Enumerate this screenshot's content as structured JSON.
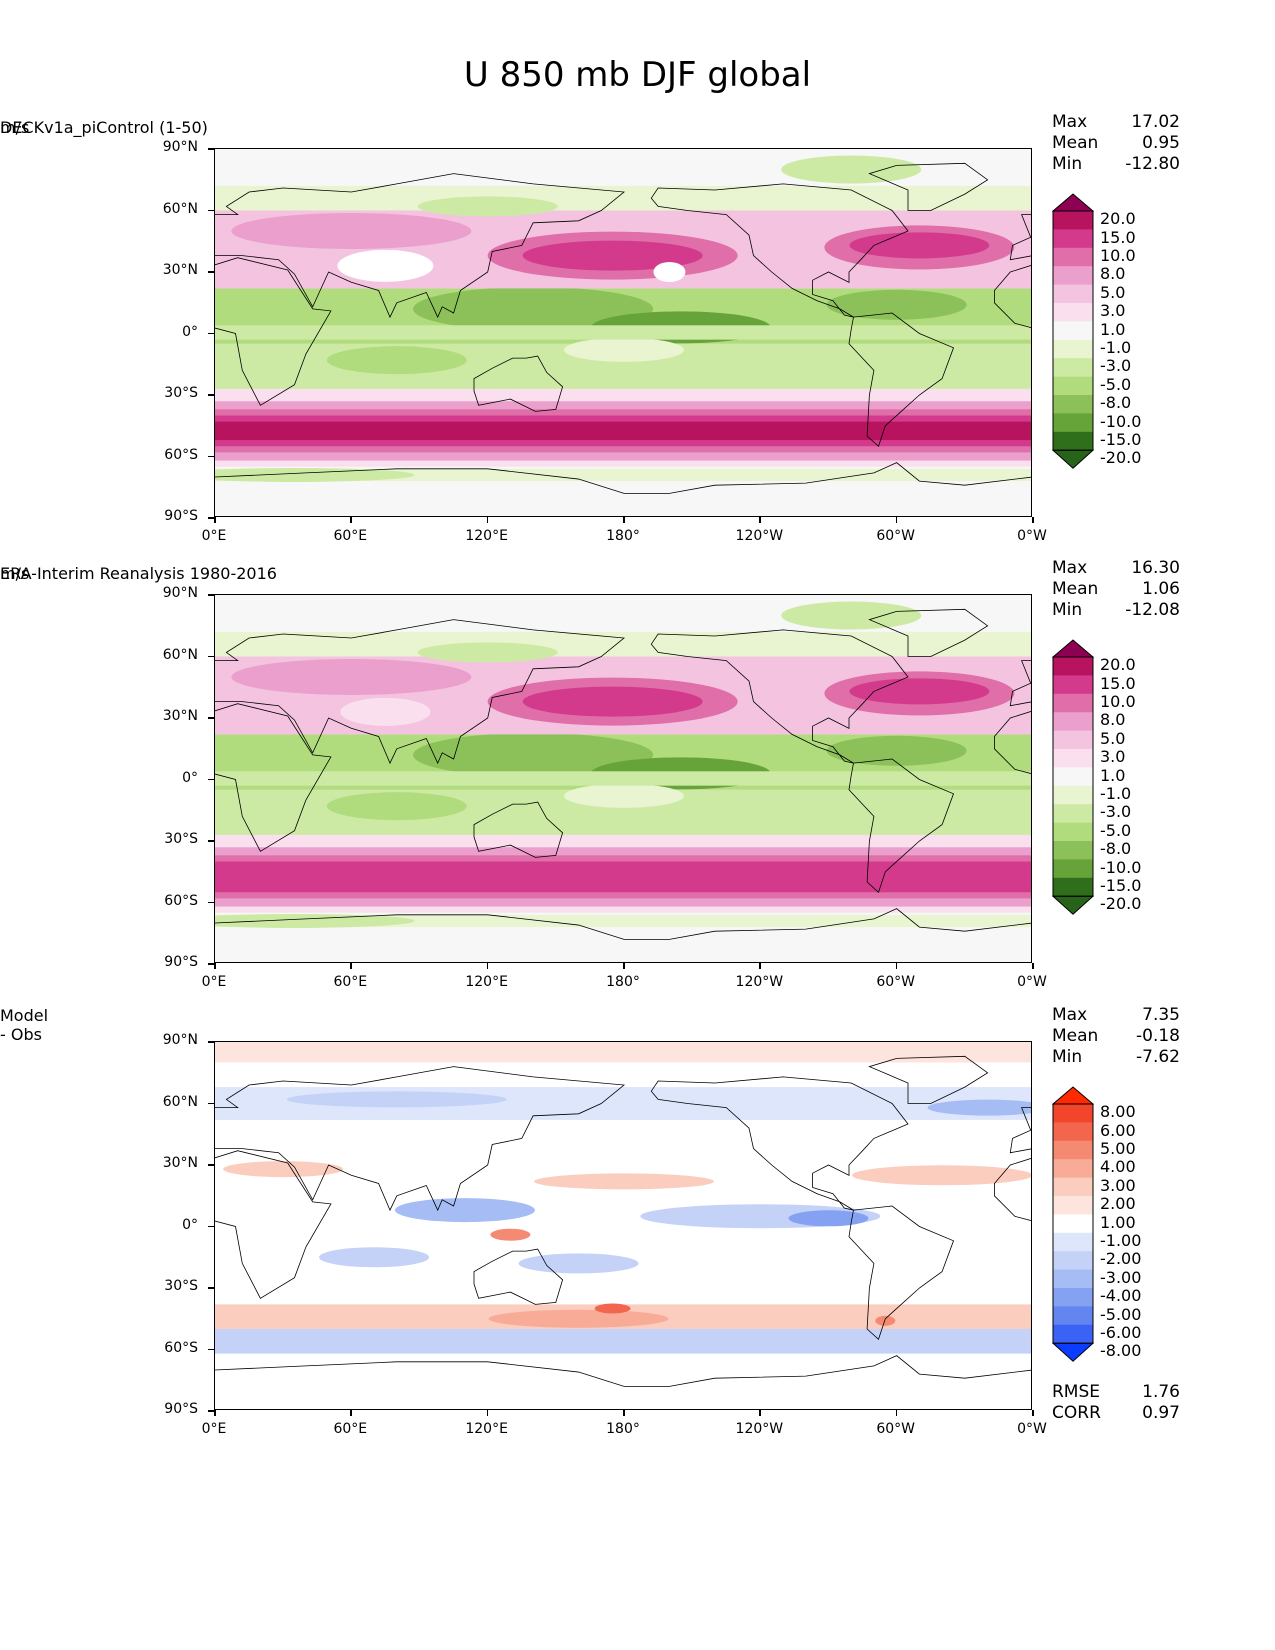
{
  "figure": {
    "title": "U 850 mb DJF global"
  },
  "axes": {
    "y_ticks": [
      "90°N",
      "60°N",
      "30°N",
      "0°",
      "30°S",
      "60°S",
      "90°S"
    ],
    "x_ticks": [
      "0°E",
      "60°E",
      "120°E",
      "180°",
      "120°W",
      "60°W",
      "0°W"
    ],
    "lon_range": [
      0,
      360
    ],
    "lat_range": [
      -90,
      90
    ]
  },
  "panels": [
    {
      "title": "DECKv1a_piControl (1-50)",
      "units": "m/s",
      "stats": [
        {
          "label": "Max",
          "value": "17.02"
        },
        {
          "label": "Mean",
          "value": "0.95"
        },
        {
          "label": "Min",
          "value": "-12.80"
        }
      ],
      "colorbar": {
        "levels": [
          "20.0",
          "15.0",
          "10.0",
          "8.0",
          "5.0",
          "3.0",
          "1.0",
          "-1.0",
          "-3.0",
          "-5.0",
          "-8.0",
          "-10.0",
          "-15.0",
          "-20.0"
        ],
        "colors": [
          "#8e0152",
          "#b7135f",
          "#d33a8c",
          "#df6ea9",
          "#eb9fcc",
          "#f4c3e0",
          "#fae0ef",
          "#f7f7f7",
          "#e8f5d0",
          "#cdeaa4",
          "#b1dc7d",
          "#8cc15a",
          "#66a43a",
          "#2f6f1b",
          "#276419"
        ],
        "scheme": "PiYG"
      }
    },
    {
      "title": "ERA-Interim Reanalysis 1980-2016",
      "units": "m/s",
      "stats": [
        {
          "label": "Max",
          "value": "16.30"
        },
        {
          "label": "Mean",
          "value": "1.06"
        },
        {
          "label": "Min",
          "value": "-12.08"
        }
      ],
      "colorbar": {
        "levels": [
          "20.0",
          "15.0",
          "10.0",
          "8.0",
          "5.0",
          "3.0",
          "1.0",
          "-1.0",
          "-3.0",
          "-5.0",
          "-8.0",
          "-10.0",
          "-15.0",
          "-20.0"
        ],
        "colors": [
          "#8e0152",
          "#b7135f",
          "#d33a8c",
          "#df6ea9",
          "#eb9fcc",
          "#f4c3e0",
          "#fae0ef",
          "#f7f7f7",
          "#e8f5d0",
          "#cdeaa4",
          "#b1dc7d",
          "#8cc15a",
          "#66a43a",
          "#2f6f1b",
          "#276419"
        ],
        "scheme": "PiYG"
      }
    },
    {
      "title": "Model - Obs",
      "units": "",
      "stats": [
        {
          "label": "Max",
          "value": "7.35"
        },
        {
          "label": "Mean",
          "value": "-0.18"
        },
        {
          "label": "Min",
          "value": "-7.62"
        }
      ],
      "extra_stats": [
        {
          "label": "RMSE",
          "value": "1.76"
        },
        {
          "label": "CORR",
          "value": "0.97"
        }
      ],
      "colorbar": {
        "levels": [
          "8.00",
          "6.00",
          "5.00",
          "4.00",
          "3.00",
          "2.00",
          "1.00",
          "-1.00",
          "-2.00",
          "-3.00",
          "-4.00",
          "-5.00",
          "-6.00",
          "-8.00"
        ],
        "colors": [
          "#ff2a00",
          "#f2452c",
          "#f3664e",
          "#f58a72",
          "#f8ac97",
          "#fbcdbf",
          "#fde5dd",
          "#ffffff",
          "#dde6fb",
          "#c4d2f8",
          "#a6bcf5",
          "#85a2f2",
          "#6385f0",
          "#3a63f5",
          "#0b3cff"
        ],
        "scheme": "diverging-red-blue"
      }
    }
  ],
  "chart_data": {
    "type": "heatmap",
    "title": "U 850 mb DJF global",
    "panels": [
      {
        "title": "DECKv1a_piControl (1-50)",
        "units": "m/s",
        "zonal_bands": [
          {
            "lat": [
              -60,
              -35
            ],
            "value": 15
          },
          {
            "lat": [
              -35,
              -25
            ],
            "value": 4
          },
          {
            "lat": [
              -25,
              -5
            ],
            "value": -5
          },
          {
            "lat": [
              -5,
              20
            ],
            "value": -9
          },
          {
            "lat": [
              25,
              45
            ],
            "value": 9
          },
          {
            "lat": [
              45,
              70
            ],
            "value": 4
          }
        ],
        "max": 17.02,
        "mean": 0.95,
        "min": -12.8
      },
      {
        "title": "ERA-Interim Reanalysis 1980-2016",
        "units": "m/s",
        "zonal_bands": [
          {
            "lat": [
              -60,
              -35
            ],
            "value": 14
          },
          {
            "lat": [
              -35,
              -25
            ],
            "value": 3
          },
          {
            "lat": [
              -25,
              -5
            ],
            "value": -5
          },
          {
            "lat": [
              -5,
              20
            ],
            "value": -8
          },
          {
            "lat": [
              25,
              45
            ],
            "value": 9
          },
          {
            "lat": [
              45,
              70
            ],
            "value": 5
          }
        ],
        "max": 16.3,
        "mean": 1.06,
        "min": -12.08
      },
      {
        "title": "Model - Obs",
        "zonal_bands": [
          {
            "lat": [
              -60,
              -48
            ],
            "value": -2
          },
          {
            "lat": [
              -48,
              -35
            ],
            "value": 2
          },
          {
            "lat": [
              -20,
              -5
            ],
            "value": -2
          },
          {
            "lat": [
              0,
              10
            ],
            "value": -2
          },
          {
            "lat": [
              20,
              35
            ],
            "value": 1.5
          },
          {
            "lat": [
              50,
              65
            ],
            "value": -2
          }
        ],
        "max": 7.35,
        "mean": -0.18,
        "min": -7.62,
        "rmse": 1.76,
        "corr": 0.97
      }
    ]
  }
}
